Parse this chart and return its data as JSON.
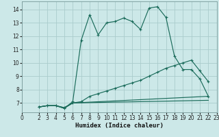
{
  "xlabel": "Humidex (Indice chaleur)",
  "bg_color": "#cce8e8",
  "grid_color": "#aacccc",
  "line_color": "#1a6b5a",
  "xlim": [
    0,
    23
  ],
  "ylim": [
    6.3,
    14.6
  ],
  "yticks": [
    7,
    8,
    9,
    10,
    11,
    12,
    13,
    14
  ],
  "xticks": [
    0,
    2,
    3,
    4,
    5,
    6,
    7,
    8,
    9,
    10,
    11,
    12,
    13,
    14,
    15,
    16,
    17,
    18,
    19,
    20,
    21,
    22,
    23
  ],
  "series": [
    {
      "x": [
        2,
        3,
        4,
        5,
        6,
        7,
        8,
        9,
        10,
        11,
        12,
        13,
        14,
        15,
        16,
        17,
        18,
        19,
        20,
        21,
        22
      ],
      "y": [
        6.7,
        6.8,
        6.8,
        6.6,
        7.1,
        11.7,
        13.6,
        12.1,
        13.0,
        13.1,
        13.35,
        13.1,
        12.5,
        14.1,
        14.2,
        13.4,
        10.5,
        9.5,
        9.5,
        8.8,
        7.5
      ],
      "markers": true
    },
    {
      "x": [
        2,
        3,
        4,
        5,
        6,
        7,
        8,
        9,
        10,
        11,
        12,
        13,
        14,
        15,
        16,
        17,
        18,
        19,
        20,
        21,
        22
      ],
      "y": [
        6.7,
        6.8,
        6.8,
        6.65,
        7.0,
        7.1,
        7.5,
        7.7,
        7.9,
        8.1,
        8.3,
        8.5,
        8.7,
        9.0,
        9.3,
        9.6,
        9.8,
        10.0,
        10.2,
        9.4,
        8.6
      ],
      "markers": true
    },
    {
      "x": [
        2,
        3,
        4,
        5,
        6,
        22
      ],
      "y": [
        6.7,
        6.8,
        6.8,
        6.65,
        7.0,
        7.5
      ],
      "markers": false
    },
    {
      "x": [
        2,
        3,
        4,
        5,
        6,
        22
      ],
      "y": [
        6.7,
        6.8,
        6.8,
        6.6,
        7.0,
        7.2
      ],
      "markers": false
    }
  ]
}
